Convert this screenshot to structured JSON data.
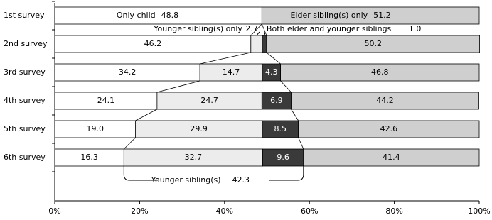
{
  "chart_data": {
    "type": "stacked-bar-horizontal",
    "categories": [
      "1st survey",
      "2nd survey",
      "3rd survey",
      "4th survey",
      "5th survey",
      "6th survey"
    ],
    "series": [
      {
        "name": "Only child",
        "color": "#ffffff",
        "values": [
          48.8,
          46.2,
          34.2,
          24.1,
          19.0,
          16.3
        ],
        "value_labels": [
          "48.8",
          "46.2",
          "34.2",
          "24.1",
          "19.0",
          "16.3"
        ]
      },
      {
        "name": "Younger sibling(s) only",
        "color": "#ececec",
        "values": [
          null,
          2.7,
          14.7,
          24.7,
          29.9,
          32.7
        ],
        "value_labels": [
          null,
          "2.7",
          "14.7",
          "24.7",
          "29.9",
          "32.7"
        ]
      },
      {
        "name": "Both elder and younger siblings",
        "color": "#3a3a3a",
        "values": [
          null,
          1.0,
          4.3,
          6.9,
          8.5,
          9.6
        ],
        "value_labels": [
          null,
          "1.0",
          "4.3",
          "6.9",
          "8.5",
          "9.6"
        ]
      },
      {
        "name": "Elder sibling(s) only",
        "color": "#cfcfcf",
        "values": [
          51.2,
          50.2,
          46.8,
          44.2,
          42.6,
          41.4
        ],
        "value_labels": [
          "51.2",
          "50.2",
          "46.8",
          "44.2",
          "42.6",
          "41.4"
        ]
      }
    ],
    "xlim": [
      0,
      100
    ],
    "xticks": [
      {
        "value": 0,
        "label": "0%"
      },
      {
        "value": 20,
        "label": "20%"
      },
      {
        "value": 40,
        "label": "40%"
      },
      {
        "value": 60,
        "label": "60%"
      },
      {
        "value": 80,
        "label": "80%"
      },
      {
        "value": 100,
        "label": "100%"
      }
    ],
    "annotation": {
      "text": "Younger sibling(s)",
      "value": 42.3
    }
  }
}
